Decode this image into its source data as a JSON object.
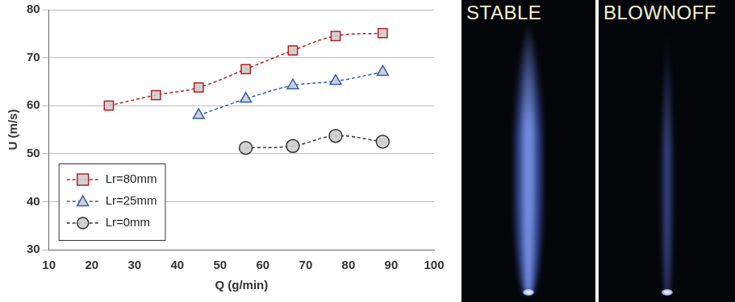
{
  "chart_data": {
    "type": "line",
    "x_label": "Q (g/min)",
    "y_label": "U (m/s)",
    "xlim": [
      10,
      100
    ],
    "xticks": [
      10,
      20,
      30,
      40,
      50,
      60,
      70,
      80,
      90,
      100
    ],
    "ylim": [
      30,
      80
    ],
    "yticks": [
      30,
      40,
      50,
      60,
      70,
      80
    ],
    "grid": "y",
    "legend": "bottom-left",
    "series": [
      {
        "name": "Lr=80mm",
        "color": "#b22222",
        "marker": "square",
        "line_style": "dashed",
        "x": [
          24,
          35,
          45,
          56,
          67,
          77,
          88
        ],
        "values": [
          60.0,
          62.2,
          63.8,
          67.6,
          71.5,
          74.5,
          75.1
        ]
      },
      {
        "name": "Lr=25mm",
        "color": "#2f5db0",
        "marker": "triangle",
        "line_style": "dashed",
        "x": [
          45,
          56,
          67,
          77,
          88
        ],
        "values": [
          58.0,
          61.4,
          64.2,
          65.1,
          67.0
        ]
      },
      {
        "name": "Lr=0mm",
        "color": "#333333",
        "marker": "circle",
        "line_style": "dashed",
        "x": [
          56,
          67,
          77,
          88
        ],
        "values": [
          51.2,
          51.6,
          53.7,
          52.5
        ]
      }
    ]
  },
  "panels": [
    {
      "label": "STABLE"
    },
    {
      "label": "BLOWNOFF"
    }
  ]
}
